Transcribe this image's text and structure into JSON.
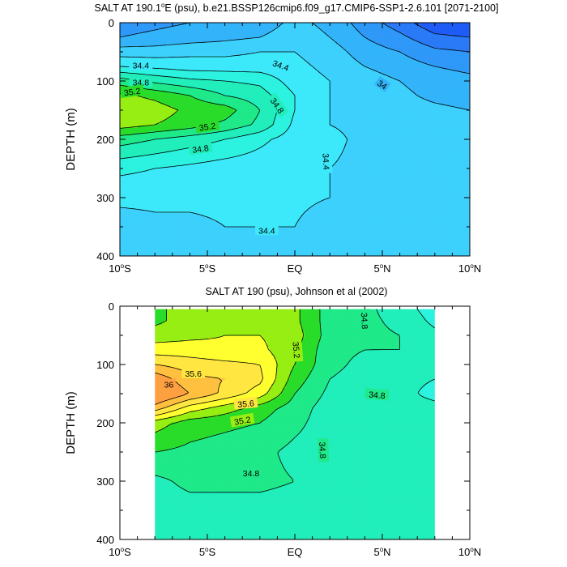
{
  "figure": {
    "panel_top": {
      "title_prefix": "SALT AT 190.1",
      "title_sup": "o",
      "title_suffix": "E (psu), b.e21.BSSP126cmip6.f09_g17.CMIP6-SSP1-2.6.101 [2071-2100]"
    },
    "panel_bottom": {
      "title": "SALT AT 190 (psu), Johnson et al (2002)"
    }
  },
  "chart_data": [
    {
      "type": "contour",
      "title": "SALT AT 190.1°E (psu), b.e21.BSSP126cmip6.f09_g17.CMIP6-SSP1-2.6.101 [2071-2100]",
      "ylabel": "DEPTH (m)",
      "xlabel": "",
      "x_ticks": [
        {
          "lat": -10,
          "label": "10",
          "sup": "o",
          "suffix": "S"
        },
        {
          "lat": -5,
          "label": "5",
          "sup": "o",
          "suffix": "S"
        },
        {
          "lat": 0,
          "label": "EQ",
          "sup": "",
          "suffix": ""
        },
        {
          "lat": 5,
          "label": "5",
          "sup": "o",
          "suffix": "N"
        },
        {
          "lat": 10,
          "label": "10",
          "sup": "o",
          "suffix": "N"
        }
      ],
      "y_ticks": [
        0,
        100,
        200,
        300,
        400
      ],
      "xlim": [
        -10,
        10
      ],
      "ylim": [
        400,
        0
      ],
      "data_xlim": [
        -10,
        10
      ],
      "levels": [
        33.4,
        33.6,
        33.8,
        34.0,
        34.2,
        34.4,
        34.6,
        34.8,
        35.0,
        35.2,
        35.4
      ],
      "colors": [
        "#0a1ef0",
        "#1e5cf5",
        "#2a7af7",
        "#2f98f8",
        "#33b4fa",
        "#3dd0fc",
        "#3ce9fb",
        "#2cf2e0",
        "#21eebb",
        "#1fe989",
        "#2adc2a",
        "#96ee12"
      ],
      "contour_labels": [
        {
          "value": "34.4",
          "lat": -8.8,
          "depth": 73,
          "angle": 0
        },
        {
          "value": "34.4",
          "lat": -0.8,
          "depth": 73,
          "angle": 20
        },
        {
          "value": "34",
          "lat": 5.0,
          "depth": 106,
          "angle": 35
        },
        {
          "value": "34.8",
          "lat": -8.8,
          "depth": 102,
          "angle": 0
        },
        {
          "value": "35.2",
          "lat": -9.3,
          "depth": 118,
          "angle": -8
        },
        {
          "value": "34.8",
          "lat": -1.0,
          "depth": 142,
          "angle": 55
        },
        {
          "value": "35.2",
          "lat": -5.0,
          "depth": 178,
          "angle": -8
        },
        {
          "value": "34.8",
          "lat": -5.4,
          "depth": 216,
          "angle": -8
        },
        {
          "value": "34.4",
          "lat": 1.8,
          "depth": 238,
          "angle": 87
        },
        {
          "value": "34.4",
          "lat": -1.6,
          "depth": 356,
          "angle": 0
        }
      ],
      "field": {
        "lats": [
          -10,
          -8,
          -6,
          -4,
          -2,
          0,
          2,
          4,
          6,
          8,
          10
        ],
        "depths": [
          0,
          25,
          50,
          75,
          100,
          125,
          150,
          175,
          200,
          250,
          300,
          350,
          400
        ],
        "values": [
          [
            33.9,
            33.95,
            34.0,
            34.05,
            34.1,
            34.25,
            34.15,
            33.9,
            33.7,
            33.45,
            33.4
          ],
          [
            34.0,
            34.05,
            34.1,
            34.15,
            34.2,
            34.3,
            34.2,
            34.0,
            33.85,
            33.65,
            33.6
          ],
          [
            34.3,
            34.3,
            34.35,
            34.35,
            34.4,
            34.4,
            34.3,
            34.1,
            34.0,
            33.85,
            33.8
          ],
          [
            34.6,
            34.55,
            34.5,
            34.5,
            34.5,
            34.45,
            34.35,
            34.2,
            34.1,
            34.0,
            33.95
          ],
          [
            35.1,
            34.95,
            34.85,
            34.8,
            34.75,
            34.5,
            34.4,
            34.3,
            34.2,
            34.1,
            34.05
          ],
          [
            35.45,
            35.35,
            35.2,
            35.0,
            34.9,
            34.6,
            34.4,
            34.35,
            34.25,
            34.15,
            34.1
          ],
          [
            35.55,
            35.5,
            35.35,
            35.3,
            35.0,
            34.6,
            34.4,
            34.35,
            34.3,
            34.25,
            34.2
          ],
          [
            35.5,
            35.4,
            35.3,
            35.15,
            34.95,
            34.55,
            34.4,
            34.35,
            34.35,
            34.3,
            34.3
          ],
          [
            35.1,
            35.0,
            34.9,
            34.8,
            34.65,
            34.5,
            34.45,
            34.35,
            34.35,
            34.3,
            34.3
          ],
          [
            34.65,
            34.6,
            34.55,
            34.5,
            34.48,
            34.45,
            34.4,
            34.35,
            34.35,
            34.3,
            34.3
          ],
          [
            34.45,
            34.45,
            34.42,
            34.42,
            34.42,
            34.42,
            34.4,
            34.35,
            34.35,
            34.3,
            34.3
          ],
          [
            34.3,
            34.35,
            34.38,
            34.4,
            34.4,
            34.4,
            34.35,
            34.35,
            34.35,
            34.3,
            34.3
          ],
          [
            34.25,
            34.3,
            34.35,
            34.38,
            34.38,
            34.36,
            34.35,
            34.33,
            34.3,
            34.3,
            34.3
          ]
        ]
      }
    },
    {
      "type": "contour",
      "title": "SALT AT 190 (psu), Johnson et al (2002)",
      "ylabel": "DEPTH (m)",
      "xlabel": "",
      "x_ticks": [
        {
          "lat": -10,
          "label": "10",
          "sup": "o",
          "suffix": "S"
        },
        {
          "lat": -5,
          "label": "5",
          "sup": "o",
          "suffix": "S"
        },
        {
          "lat": 0,
          "label": "EQ",
          "sup": "",
          "suffix": ""
        },
        {
          "lat": 5,
          "label": "5",
          "sup": "o",
          "suffix": "N"
        },
        {
          "lat": 10,
          "label": "10",
          "sup": "o",
          "suffix": "N"
        }
      ],
      "y_ticks": [
        0,
        100,
        200,
        300,
        400
      ],
      "xlim": [
        -10,
        10
      ],
      "ylim": [
        400,
        0
      ],
      "data_xlim": [
        -8,
        8
      ],
      "data_ymin": 5,
      "levels": [
        34.4,
        34.6,
        34.8,
        35.0,
        35.2,
        35.4,
        35.6,
        35.8,
        36.0
      ],
      "colors": [
        "#3ce9fb",
        "#2cf2e0",
        "#21eebb",
        "#1fe989",
        "#2adc2a",
        "#96ee12",
        "#ffff30",
        "#ffe640",
        "#ffc040",
        "#ffa040"
      ],
      "contour_labels": [
        {
          "value": "34.8",
          "lat": 4.0,
          "depth": 25,
          "angle": 87
        },
        {
          "value": "35.2",
          "lat": 0.1,
          "depth": 75,
          "angle": 85
        },
        {
          "value": "35.6",
          "lat": -5.8,
          "depth": 115,
          "angle": 0
        },
        {
          "value": "36",
          "lat": -7.2,
          "depth": 134,
          "angle": 0
        },
        {
          "value": "35.6",
          "lat": -2.8,
          "depth": 167,
          "angle": -5
        },
        {
          "value": "35.2",
          "lat": -3.0,
          "depth": 196,
          "angle": -10
        },
        {
          "value": "34.8",
          "lat": 4.7,
          "depth": 152,
          "angle": 5
        },
        {
          "value": "34.8",
          "lat": 1.6,
          "depth": 247,
          "angle": 87
        },
        {
          "value": "34.8",
          "lat": -2.5,
          "depth": 286,
          "angle": 0
        }
      ],
      "field": {
        "lats": [
          -8,
          -6,
          -4,
          -2,
          0,
          2,
          4,
          6,
          8
        ],
        "depths": [
          5,
          25,
          50,
          75,
          100,
          125,
          150,
          175,
          200,
          250,
          300,
          350,
          400
        ],
        "values": [
          [
            35.15,
            35.3,
            35.35,
            35.35,
            35.25,
            34.9,
            34.85,
            34.7,
            34.5
          ],
          [
            35.15,
            35.3,
            35.35,
            35.35,
            35.25,
            34.9,
            34.85,
            34.75,
            34.55
          ],
          [
            35.3,
            35.35,
            35.4,
            35.4,
            35.3,
            34.9,
            34.85,
            34.8,
            34.65
          ],
          [
            35.5,
            35.5,
            35.45,
            35.45,
            35.25,
            34.85,
            34.8,
            34.8,
            34.7
          ],
          [
            35.8,
            35.7,
            35.65,
            35.6,
            35.2,
            34.85,
            34.75,
            34.7,
            34.65
          ],
          [
            36.15,
            35.85,
            35.8,
            35.65,
            35.1,
            34.8,
            34.72,
            34.65,
            34.6
          ],
          [
            36.3,
            36.0,
            35.75,
            35.5,
            35.0,
            34.75,
            34.7,
            34.65,
            34.55
          ],
          [
            35.9,
            35.5,
            35.3,
            35.1,
            34.9,
            34.7,
            34.7,
            34.68,
            34.65
          ],
          [
            35.3,
            35.1,
            35.05,
            35.0,
            34.85,
            34.7,
            34.7,
            34.7,
            34.7
          ],
          [
            35.0,
            34.95,
            34.9,
            34.85,
            34.75,
            34.7,
            34.7,
            34.7,
            34.7
          ],
          [
            34.75,
            34.85,
            34.85,
            34.85,
            34.8,
            34.7,
            34.7,
            34.7,
            34.7
          ],
          [
            34.7,
            34.72,
            34.72,
            34.72,
            34.7,
            34.7,
            34.7,
            34.7,
            34.7
          ],
          [
            34.7,
            34.7,
            34.7,
            34.7,
            34.7,
            34.7,
            34.7,
            34.7,
            34.7
          ]
        ]
      }
    }
  ]
}
